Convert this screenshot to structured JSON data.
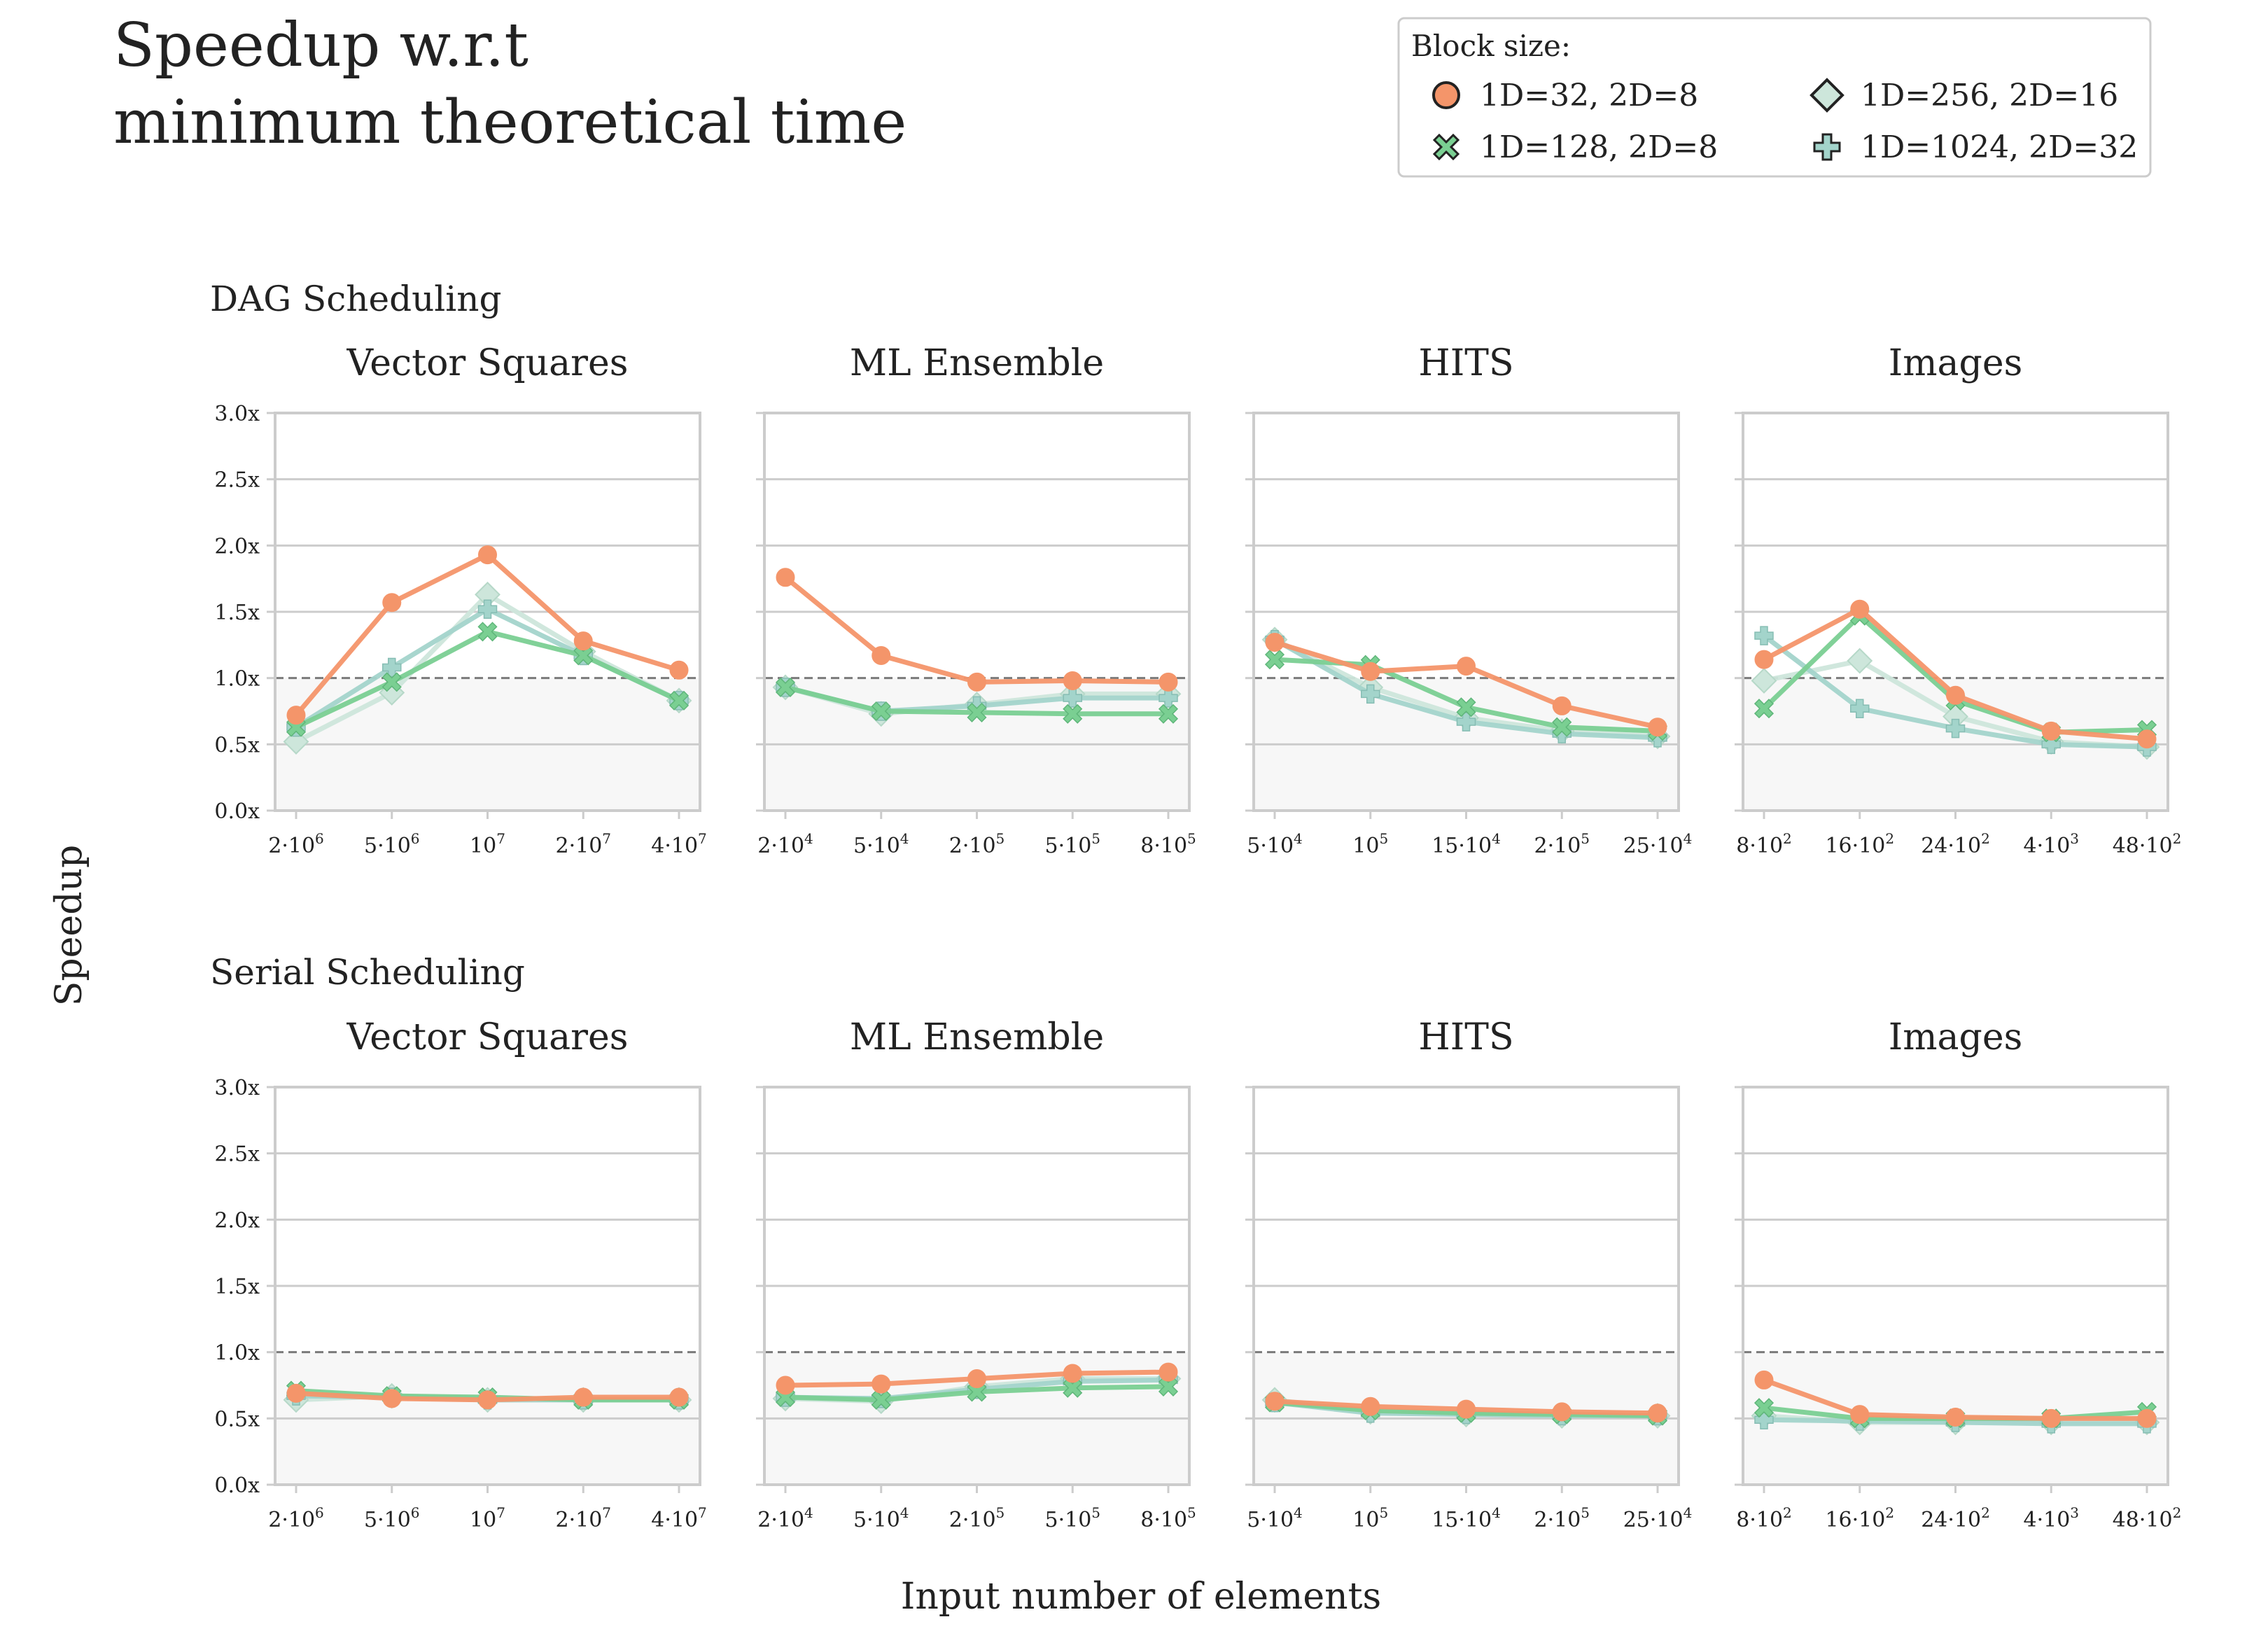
{
  "title": [
    "Speedup w.r.t",
    "minimum theoretical time"
  ],
  "legend": {
    "title": "Block size:",
    "placement": "top-right",
    "entries": [
      {
        "label": "1D=32, 2D=8",
        "marker": "circle",
        "color": "#F4956A"
      },
      {
        "label": "1D=256, 2D=16",
        "marker": "diamond",
        "color": "#CDE6DB"
      },
      {
        "label": "1D=128, 2D=8",
        "marker": "x",
        "color": "#7ACF92"
      },
      {
        "label": "1D=1024, 2D=32",
        "marker": "plus",
        "color": "#A3D4CB"
      }
    ]
  },
  "xlabel": "Input number of elements",
  "ylabel": "Speedup",
  "groups": [
    "DAG Scheduling",
    "Serial Scheduling"
  ],
  "chart_data": [
    {
      "type": "line",
      "group": "DAG Scheduling",
      "title": "Vector Squares",
      "categories": [
        {
          "base": "2·10",
          "exp": "6"
        },
        {
          "base": "5·10",
          "exp": "6"
        },
        {
          "base": "10",
          "exp": "7"
        },
        {
          "base": "2·10",
          "exp": "7"
        },
        {
          "base": "4·10",
          "exp": "7"
        }
      ],
      "ylim": [
        0,
        3
      ],
      "yticks": [
        "0.0x",
        "0.5x",
        "1.0x",
        "1.5x",
        "2.0x",
        "2.5x",
        "3.0x"
      ],
      "reference_line": 1.0,
      "grid": true,
      "series": [
        {
          "name": "1D=32, 2D=8",
          "values": [
            0.72,
            1.57,
            1.93,
            1.28,
            1.06
          ]
        },
        {
          "name": "1D=128, 2D=8",
          "values": [
            0.63,
            0.97,
            1.35,
            1.17,
            0.83
          ]
        },
        {
          "name": "1D=256, 2D=16",
          "values": [
            0.52,
            0.89,
            1.63,
            1.2,
            0.83
          ]
        },
        {
          "name": "1D=1024, 2D=32",
          "values": [
            0.63,
            1.08,
            1.52,
            1.17,
            0.83
          ]
        }
      ]
    },
    {
      "type": "line",
      "group": "DAG Scheduling",
      "title": "ML Ensemble",
      "categories": [
        {
          "base": "2·10",
          "exp": "4"
        },
        {
          "base": "5·10",
          "exp": "4"
        },
        {
          "base": "2·10",
          "exp": "5"
        },
        {
          "base": "5·10",
          "exp": "5"
        },
        {
          "base": "8·10",
          "exp": "5"
        }
      ],
      "ylim": [
        0,
        3
      ],
      "reference_line": 1.0,
      "grid": true,
      "series": [
        {
          "name": "1D=32, 2D=8",
          "values": [
            1.76,
            1.17,
            0.97,
            0.98,
            0.97
          ]
        },
        {
          "name": "1D=128, 2D=8",
          "values": [
            0.93,
            0.75,
            0.74,
            0.73,
            0.73
          ]
        },
        {
          "name": "1D=256, 2D=16",
          "values": [
            0.93,
            0.73,
            0.8,
            0.88,
            0.88
          ]
        },
        {
          "name": "1D=1024, 2D=32",
          "values": [
            0.93,
            0.75,
            0.79,
            0.85,
            0.85
          ]
        }
      ]
    },
    {
      "type": "line",
      "group": "DAG Scheduling",
      "title": "HITS",
      "categories": [
        {
          "base": "5·10",
          "exp": "4"
        },
        {
          "base": "10",
          "exp": "5"
        },
        {
          "base": "15·10",
          "exp": "4"
        },
        {
          "base": "2·10",
          "exp": "5"
        },
        {
          "base": "25·10",
          "exp": "4"
        }
      ],
      "ylim": [
        0,
        3
      ],
      "reference_line": 1.0,
      "grid": true,
      "series": [
        {
          "name": "1D=32, 2D=8",
          "values": [
            1.27,
            1.05,
            1.09,
            0.79,
            0.63
          ]
        },
        {
          "name": "1D=128, 2D=8",
          "values": [
            1.14,
            1.1,
            0.78,
            0.63,
            0.6
          ]
        },
        {
          "name": "1D=256, 2D=16",
          "values": [
            1.29,
            0.93,
            0.7,
            0.6,
            0.56
          ]
        },
        {
          "name": "1D=1024, 2D=32",
          "values": [
            1.29,
            0.88,
            0.67,
            0.58,
            0.55
          ]
        }
      ]
    },
    {
      "type": "line",
      "group": "DAG Scheduling",
      "title": "Images",
      "categories": [
        {
          "base": "8·10",
          "exp": "2"
        },
        {
          "base": "16·10",
          "exp": "2"
        },
        {
          "base": "24·10",
          "exp": "2"
        },
        {
          "base": "4·10",
          "exp": "3"
        },
        {
          "base": "48·10",
          "exp": "2"
        }
      ],
      "ylim": [
        0,
        3
      ],
      "reference_line": 1.0,
      "grid": true,
      "series": [
        {
          "name": "1D=32, 2D=8",
          "values": [
            1.14,
            1.52,
            0.87,
            0.6,
            0.54
          ]
        },
        {
          "name": "1D=128, 2D=8",
          "values": [
            0.77,
            1.47,
            0.83,
            0.59,
            0.61
          ]
        },
        {
          "name": "1D=256, 2D=16",
          "values": [
            0.98,
            1.13,
            0.71,
            0.52,
            0.48
          ]
        },
        {
          "name": "1D=1024, 2D=32",
          "values": [
            1.32,
            0.77,
            0.62,
            0.5,
            0.48
          ]
        }
      ]
    },
    {
      "type": "line",
      "group": "Serial Scheduling",
      "title": "Vector Squares",
      "categories": [
        {
          "base": "2·10",
          "exp": "6"
        },
        {
          "base": "5·10",
          "exp": "6"
        },
        {
          "base": "10",
          "exp": "7"
        },
        {
          "base": "2·10",
          "exp": "7"
        },
        {
          "base": "4·10",
          "exp": "7"
        }
      ],
      "ylim": [
        0,
        3
      ],
      "reference_line": 1.0,
      "grid": true,
      "series": [
        {
          "name": "1D=32, 2D=8",
          "values": [
            0.69,
            0.65,
            0.64,
            0.66,
            0.66
          ]
        },
        {
          "name": "1D=128, 2D=8",
          "values": [
            0.71,
            0.67,
            0.66,
            0.64,
            0.64
          ]
        },
        {
          "name": "1D=256, 2D=16",
          "values": [
            0.64,
            0.67,
            0.64,
            0.64,
            0.64
          ]
        },
        {
          "name": "1D=1024, 2D=32",
          "values": [
            0.67,
            0.66,
            0.64,
            0.64,
            0.64
          ]
        }
      ]
    },
    {
      "type": "line",
      "group": "Serial Scheduling",
      "title": "ML Ensemble",
      "categories": [
        {
          "base": "2·10",
          "exp": "4"
        },
        {
          "base": "5·10",
          "exp": "4"
        },
        {
          "base": "2·10",
          "exp": "5"
        },
        {
          "base": "5·10",
          "exp": "5"
        },
        {
          "base": "8·10",
          "exp": "5"
        }
      ],
      "ylim": [
        0,
        3
      ],
      "reference_line": 1.0,
      "grid": true,
      "series": [
        {
          "name": "1D=32, 2D=8",
          "values": [
            0.75,
            0.76,
            0.8,
            0.84,
            0.85
          ]
        },
        {
          "name": "1D=128, 2D=8",
          "values": [
            0.66,
            0.64,
            0.7,
            0.73,
            0.74
          ]
        },
        {
          "name": "1D=256, 2D=16",
          "values": [
            0.65,
            0.63,
            0.74,
            0.8,
            0.8
          ]
        },
        {
          "name": "1D=1024, 2D=32",
          "values": [
            0.66,
            0.65,
            0.72,
            0.78,
            0.79
          ]
        }
      ]
    },
    {
      "type": "line",
      "group": "Serial Scheduling",
      "title": "HITS",
      "categories": [
        {
          "base": "5·10",
          "exp": "4"
        },
        {
          "base": "10",
          "exp": "5"
        },
        {
          "base": "15·10",
          "exp": "4"
        },
        {
          "base": "2·10",
          "exp": "5"
        },
        {
          "base": "25·10",
          "exp": "4"
        }
      ],
      "ylim": [
        0,
        3
      ],
      "reference_line": 1.0,
      "grid": true,
      "series": [
        {
          "name": "1D=32, 2D=8",
          "values": [
            0.63,
            0.59,
            0.57,
            0.55,
            0.54
          ]
        },
        {
          "name": "1D=128, 2D=8",
          "values": [
            0.62,
            0.56,
            0.54,
            0.53,
            0.52
          ]
        },
        {
          "name": "1D=256, 2D=16",
          "values": [
            0.64,
            0.55,
            0.53,
            0.52,
            0.52
          ]
        },
        {
          "name": "1D=1024, 2D=32",
          "values": [
            0.62,
            0.54,
            0.53,
            0.52,
            0.52
          ]
        }
      ]
    },
    {
      "type": "line",
      "group": "Serial Scheduling",
      "title": "Images",
      "categories": [
        {
          "base": "8·10",
          "exp": "2"
        },
        {
          "base": "16·10",
          "exp": "2"
        },
        {
          "base": "24·10",
          "exp": "2"
        },
        {
          "base": "4·10",
          "exp": "3"
        },
        {
          "base": "48·10",
          "exp": "2"
        }
      ],
      "ylim": [
        0,
        3
      ],
      "reference_line": 1.0,
      "grid": true,
      "series": [
        {
          "name": "1D=32, 2D=8",
          "values": [
            0.79,
            0.53,
            0.51,
            0.5,
            0.5
          ]
        },
        {
          "name": "1D=128, 2D=8",
          "values": [
            0.58,
            0.5,
            0.5,
            0.5,
            0.55
          ]
        },
        {
          "name": "1D=256, 2D=16",
          "values": [
            0.52,
            0.47,
            0.47,
            0.47,
            0.47
          ]
        },
        {
          "name": "1D=1024, 2D=32",
          "values": [
            0.49,
            0.48,
            0.47,
            0.46,
            0.46
          ]
        }
      ]
    }
  ]
}
